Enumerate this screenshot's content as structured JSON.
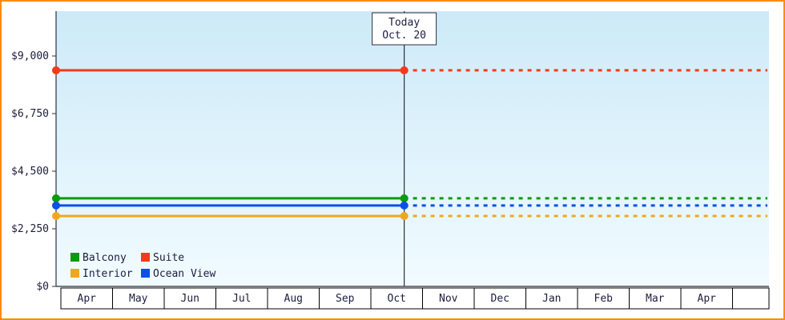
{
  "frame": {
    "border_color": "#ff8c00",
    "background": "#ffffff"
  },
  "colors": {
    "plot_gradient_top": "#cdeaf8",
    "plot_gradient_bottom": "#f1fbff",
    "axis": "#2e2e40",
    "text": "#1d1d3f",
    "strip_border": "#000000"
  },
  "chart_data": {
    "type": "line",
    "title": "",
    "description": "Cabin price history by category; flat lines solid before today, dotted projection after today",
    "today": {
      "label_line1": "Today",
      "label_line2": "Oct. 20",
      "month_index": 6,
      "day": 20,
      "days_in_month": 31
    },
    "x_axis": {
      "months": [
        "Apr",
        "May",
        "Jun",
        "Jul",
        "Aug",
        "Sep",
        "Oct",
        "Nov",
        "Dec",
        "Jan",
        "Feb",
        "Mar",
        "Apr"
      ]
    },
    "y_axis": {
      "ticks": [
        {
          "label": "$9,000",
          "value": 9000
        },
        {
          "label": "$6,750",
          "value": 6750
        },
        {
          "label": "$4,500",
          "value": 4500
        },
        {
          "label": "$2,250",
          "value": 2250
        },
        {
          "label": "$0",
          "value": 0
        }
      ],
      "min": 0,
      "max": 10750
    },
    "series": [
      {
        "name": "Suite",
        "color": "#f43a19",
        "value": 8440
      },
      {
        "name": "Balcony",
        "color": "#0a9b10",
        "value": 3440
      },
      {
        "name": "Ocean View",
        "color": "#0b50e8",
        "value": 3160
      },
      {
        "name": "Interior",
        "color": "#f2a71b",
        "value": 2750
      }
    ],
    "legend": {
      "position": "bottom-left",
      "items": [
        {
          "label": "Balcony",
          "color": "#0a9b10"
        },
        {
          "label": "Suite",
          "color": "#f43a19"
        },
        {
          "label": "Interior",
          "color": "#f2a71b"
        },
        {
          "label": "Ocean View",
          "color": "#0b50e8"
        }
      ]
    }
  }
}
